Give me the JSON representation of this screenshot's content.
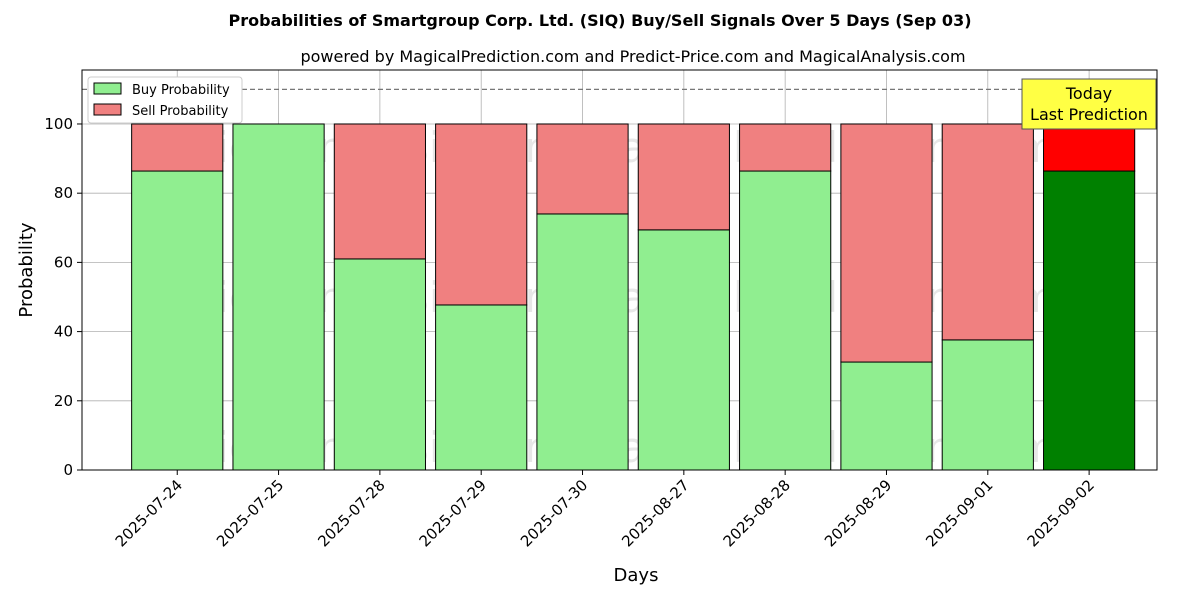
{
  "chart_data": {
    "type": "bar",
    "stacked": true,
    "title": "Probabilities of Smartgroup Corp. Ltd. (SIQ) Buy/Sell Signals Over 5 Days (Sep 03)",
    "subtitle": "powered by MagicalPrediction.com and Predict-Price.com and MagicalAnalysis.com",
    "xlabel": "Days",
    "ylabel": "Probability",
    "ylim": [
      0,
      115.6
    ],
    "yticks": [
      0,
      20,
      40,
      60,
      80,
      100
    ],
    "grid": true,
    "reference_line": 110,
    "categories": [
      "2025-07-24",
      "2025-07-25",
      "2025-07-28",
      "2025-07-29",
      "2025-07-30",
      "2025-08-27",
      "2025-08-28",
      "2025-08-29",
      "2025-09-01",
      "2025-09-02"
    ],
    "series": [
      {
        "name": "Buy Probability",
        "values": [
          86.4,
          100,
          61.0,
          47.7,
          74.0,
          69.4,
          86.4,
          31.2,
          37.6,
          86.4
        ]
      },
      {
        "name": "Sell Probability",
        "values": [
          13.6,
          0,
          39.0,
          52.3,
          26.0,
          30.6,
          13.6,
          68.8,
          62.4,
          13.6
        ]
      }
    ],
    "legend_placement": "top-left",
    "annotation": {
      "line1": "Today",
      "line2": "Last Prediction"
    },
    "watermarks": [
      "MagicalAnalysis.com",
      "MagicalPrediction.com"
    ],
    "colors": {
      "buy": "#90ee90",
      "sell": "#f08080",
      "buy_last": "#008000",
      "sell_last": "#ff0000",
      "annotation_bg": "#ffff44"
    }
  }
}
